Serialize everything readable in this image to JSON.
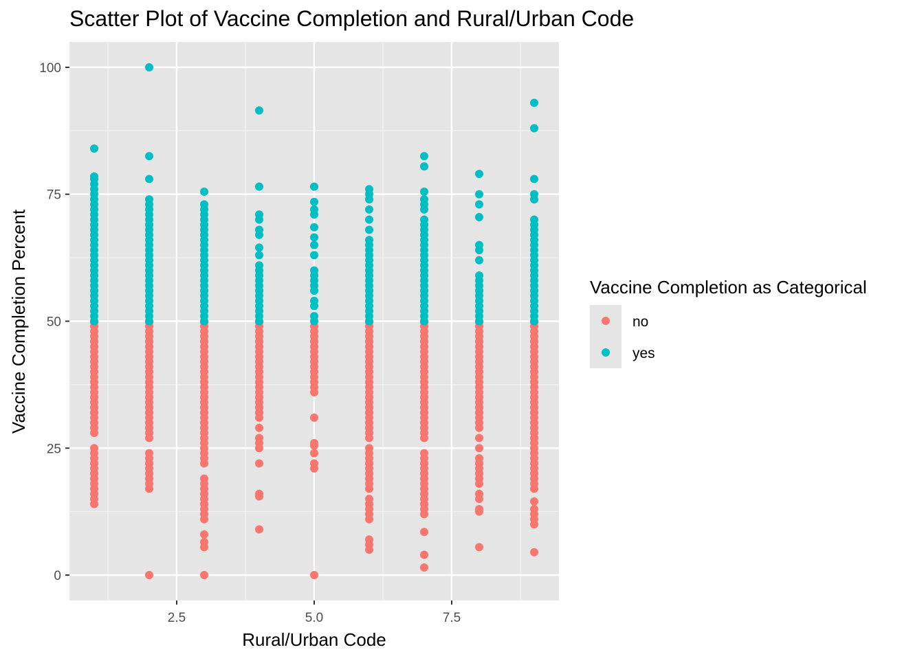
{
  "chart_data": {
    "type": "scatter",
    "title": "Scatter Plot of Vaccine Completion and Rural/Urban Code",
    "xlabel": "Rural/Urban Code",
    "ylabel": "Vaccine Completion Percent",
    "xlim": [
      0.55,
      9.45
    ],
    "ylim": [
      -5,
      105
    ],
    "x_ticks": [
      2.5,
      5.0,
      7.5
    ],
    "x_tick_labels": [
      "2.5",
      "5.0",
      "7.5"
    ],
    "y_ticks": [
      0,
      25,
      50,
      75,
      100
    ],
    "y_tick_labels": [
      "0",
      "25",
      "50",
      "75",
      "100"
    ],
    "grid": true,
    "background": "#e5e5e5",
    "legend": {
      "title": "Vaccine Completion as Categorical",
      "placement": "right",
      "entries": [
        {
          "label": "no",
          "color": "#f8766d"
        },
        {
          "label": "yes",
          "color": "#00bfc4"
        }
      ]
    },
    "series": [
      {
        "name": "no",
        "color": "#f8766d",
        "points": [
          {
            "x": 1,
            "y": [
              14,
              15,
              16,
              17,
              18,
              19,
              20,
              21,
              22,
              23,
              24,
              25,
              28,
              29,
              30,
              31,
              32,
              33,
              34,
              35,
              36,
              37,
              38,
              39,
              40,
              41,
              42,
              43,
              44,
              45,
              46,
              47,
              48,
              49,
              49.8
            ]
          },
          {
            "x": 2,
            "y": [
              0,
              17,
              18,
              19,
              20,
              21,
              22,
              23,
              24,
              27,
              28,
              29,
              30,
              31,
              32,
              33,
              34,
              35,
              36,
              37,
              38,
              39,
              40,
              41,
              42,
              43,
              44,
              45,
              46,
              47,
              48,
              49,
              49.8
            ]
          },
          {
            "x": 3,
            "y": [
              0,
              5.5,
              6.5,
              8,
              11,
              12,
              13,
              14,
              15,
              16,
              17,
              18,
              19,
              22,
              23,
              24,
              25,
              26,
              27,
              28,
              29,
              30,
              31,
              32,
              33,
              34,
              35,
              36,
              37,
              38,
              39,
              40,
              41,
              42,
              43,
              44,
              45,
              46,
              47,
              48,
              49,
              49.8
            ]
          },
          {
            "x": 4,
            "y": [
              9,
              15.5,
              16,
              22,
              25,
              26,
              27,
              29,
              31,
              32,
              33,
              34,
              35,
              36,
              37,
              38,
              39,
              40,
              41,
              42,
              43,
              44,
              45,
              46,
              47,
              48,
              49,
              49.8
            ]
          },
          {
            "x": 5,
            "y": [
              0,
              21,
              22,
              24,
              25.5,
              26,
              31,
              36,
              37,
              38,
              39,
              40,
              41,
              42,
              43,
              44,
              45,
              46,
              47,
              48,
              49
            ]
          },
          {
            "x": 6,
            "y": [
              5,
              6,
              7,
              11,
              12,
              13,
              14,
              15,
              17,
              18,
              19,
              20,
              21,
              22,
              23,
              24,
              25,
              27,
              28,
              29,
              30,
              31,
              32,
              33,
              34,
              35,
              36,
              37,
              38,
              39,
              40,
              41,
              42,
              43,
              44,
              45,
              46,
              47,
              48,
              49,
              49.8
            ]
          },
          {
            "x": 7,
            "y": [
              1.5,
              4,
              8.5,
              12,
              13,
              14,
              15,
              16,
              17,
              18,
              19,
              20,
              21,
              22,
              23,
              24,
              27,
              28,
              29,
              30,
              31,
              32,
              33,
              34,
              35,
              36,
              37,
              38,
              39,
              40,
              41,
              42,
              43,
              44,
              45,
              46,
              47,
              48,
              49,
              49.8
            ]
          },
          {
            "x": 8,
            "y": [
              5.5,
              12.5,
              13,
              15,
              16,
              18,
              19,
              20,
              21,
              22,
              23,
              25,
              27,
              29,
              30,
              31,
              32,
              33,
              34,
              35,
              36,
              37,
              38,
              39,
              40,
              41,
              42,
              43,
              44,
              45,
              46,
              47,
              48,
              49,
              49.8
            ]
          },
          {
            "x": 9,
            "y": [
              4.5,
              10,
              11,
              12,
              13,
              14.5,
              17,
              18,
              19,
              20,
              21,
              22,
              23,
              24,
              25,
              26,
              27,
              28,
              29,
              30,
              31,
              32,
              33,
              34,
              35,
              36,
              37,
              38,
              39,
              40,
              41,
              42,
              43,
              44,
              45,
              46,
              47,
              48,
              49,
              49.8
            ]
          }
        ]
      },
      {
        "name": "yes",
        "color": "#00bfc4",
        "points": [
          {
            "x": 1,
            "y": [
              50,
              51,
              52,
              53,
              54,
              55,
              56,
              57,
              58,
              59,
              60,
              61,
              62,
              63,
              64,
              65,
              66,
              67,
              68,
              69,
              70,
              71,
              72,
              73,
              74,
              75,
              76,
              77,
              78,
              78.5,
              84
            ]
          },
          {
            "x": 2,
            "y": [
              50,
              51,
              52,
              53,
              54,
              55,
              56,
              57,
              58,
              59,
              60,
              61,
              62,
              63,
              64,
              65,
              66,
              67,
              68,
              69,
              70,
              71,
              72,
              73,
              74,
              78,
              82.5,
              100
            ]
          },
          {
            "x": 3,
            "y": [
              50,
              51,
              52,
              53,
              54,
              55,
              56,
              57,
              58,
              59,
              60,
              61,
              62,
              63,
              64,
              65,
              66,
              67,
              68,
              69,
              70,
              71,
              72,
              73,
              75.5
            ]
          },
          {
            "x": 4,
            "y": [
              50,
              51,
              52,
              53,
              54,
              55,
              56,
              57,
              58,
              59,
              60,
              61,
              63,
              64.5,
              67,
              68,
              70,
              71,
              76.5,
              91.5
            ]
          },
          {
            "x": 5,
            "y": [
              50,
              51,
              53,
              54,
              56,
              57,
              58,
              59,
              60,
              63,
              65,
              66.5,
              68.5,
              71,
              72,
              73.5,
              76.5
            ]
          },
          {
            "x": 6,
            "y": [
              50,
              51,
              52,
              53,
              54,
              55,
              56,
              57,
              58,
              59,
              60,
              61,
              62,
              63,
              64,
              65,
              66,
              68,
              70,
              72,
              74,
              75,
              76
            ]
          },
          {
            "x": 7,
            "y": [
              50,
              51,
              52,
              53,
              54,
              55,
              56,
              57,
              58,
              59,
              60,
              61,
              62,
              63,
              64,
              65,
              66,
              67,
              68,
              69,
              70,
              72,
              73,
              74,
              75.5,
              80.5,
              82.5
            ]
          },
          {
            "x": 8,
            "y": [
              50,
              51,
              52,
              53,
              54,
              55,
              56,
              57,
              58,
              59,
              62,
              64,
              65,
              70.5,
              73,
              75,
              79
            ]
          },
          {
            "x": 9,
            "y": [
              50,
              51,
              52,
              53,
              54,
              55,
              56,
              57,
              58,
              59,
              60,
              61,
              62,
              63,
              64,
              65,
              66,
              67,
              68,
              69,
              70,
              74,
              75,
              78,
              88,
              93
            ]
          }
        ]
      }
    ]
  }
}
